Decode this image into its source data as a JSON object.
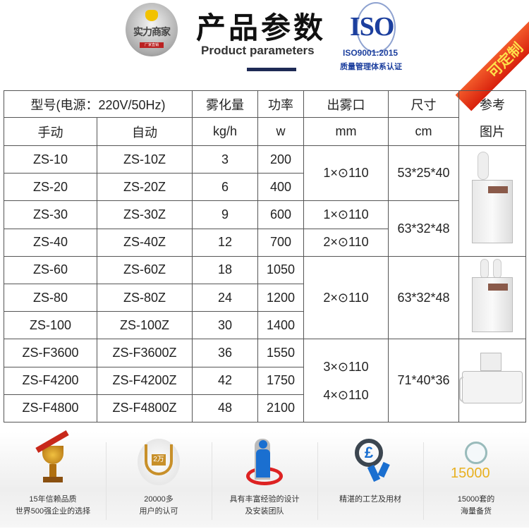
{
  "header": {
    "badge_text": "实力商家",
    "badge_sub": "厂家直销",
    "title": "产品参数",
    "subtitle": "Product parameters",
    "iso_logo": "ISO",
    "iso_cert": "ISO9001:2015",
    "iso_cert_cn": "质量管理体系认证",
    "ribbon": "可定制"
  },
  "table": {
    "head1": {
      "model": "型号(电源：220V/50Hz)",
      "mist": "雾化量",
      "power": "功率",
      "outlet": "出雾口",
      "size": "尺寸",
      "pic": "参考"
    },
    "head2": {
      "manual": "手动",
      "auto": "自动",
      "mist_unit": "kg/h",
      "power_unit": "w",
      "outlet_unit": "mm",
      "size_unit": "cm",
      "pic": "图片"
    },
    "rows": [
      {
        "manual": "ZS-10",
        "auto": "ZS-10Z",
        "mist": "3",
        "power": "200"
      },
      {
        "manual": "ZS-20",
        "auto": "ZS-20Z",
        "mist": "6",
        "power": "400"
      },
      {
        "manual": "ZS-30",
        "auto": "ZS-30Z",
        "mist": "9",
        "power": "600"
      },
      {
        "manual": "ZS-40",
        "auto": "ZS-40Z",
        "mist": "12",
        "power": "700"
      },
      {
        "manual": "ZS-60",
        "auto": "ZS-60Z",
        "mist": "18",
        "power": "1050"
      },
      {
        "manual": "ZS-80",
        "auto": "ZS-80Z",
        "mist": "24",
        "power": "1200"
      },
      {
        "manual": "ZS-100",
        "auto": "ZS-100Z",
        "mist": "30",
        "power": "1400"
      },
      {
        "manual": "ZS-F3600",
        "auto": "ZS-F3600Z",
        "mist": "36",
        "power": "1550"
      },
      {
        "manual": "ZS-F4200",
        "auto": "ZS-F4200Z",
        "mist": "42",
        "power": "1750"
      },
      {
        "manual": "ZS-F4800",
        "auto": "ZS-F4800Z",
        "mist": "48",
        "power": "2100"
      }
    ],
    "outlets": [
      "1×⊙110",
      "1×⊙110",
      "2×⊙110",
      "2×⊙110",
      "3×⊙110",
      "4×⊙110"
    ],
    "sizes": [
      "53*25*40",
      "63*32*48",
      "63*32*48",
      "71*40*36"
    ]
  },
  "features": [
    {
      "icon": "trophy-icon",
      "line1": "15年信赖品质",
      "line2": "世界500强企业的选择"
    },
    {
      "icon": "laurel-badge-icon",
      "badge": "2万",
      "line1": "20000多",
      "line2": "用户的认可"
    },
    {
      "icon": "team-icon",
      "line1": "具有丰富经验的设计",
      "line2": "及安装团队"
    },
    {
      "icon": "award-ribbon-icon",
      "line1": "精湛的工艺及用材",
      "line2": ""
    },
    {
      "icon": "magnifier-icon",
      "badge": "15000",
      "line1": "15000套的",
      "line2": "海量备货"
    }
  ]
}
